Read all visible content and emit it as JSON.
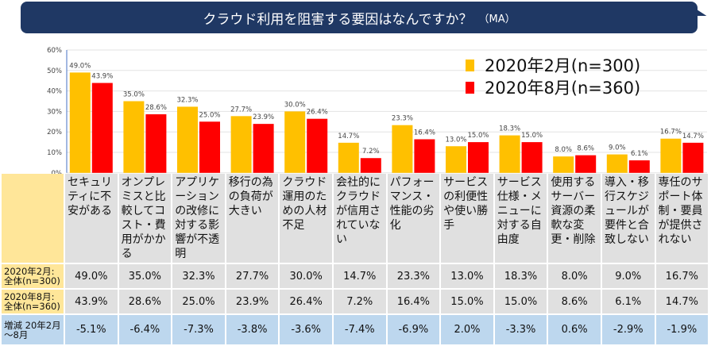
{
  "title": "クラウド利用を阻害する要因はなんですか？",
  "title_suffix": "（MA）",
  "legend": [
    {
      "label": "2020年2月(n=300)",
      "color": "#ffc000"
    },
    {
      "label": "2020年8月(n=360)",
      "color": "#ff0000"
    }
  ],
  "chart_data": {
    "type": "bar",
    "categories": [
      "セキュリティに不安がある",
      "オンプレミスと比較してコスト・費用がかかる",
      "アプリケーションの改修に対する影響が不透明",
      "移行の為の負荷が大きい",
      "クラウド運用のための人材不足",
      "会社的にクラウドが信用されていない",
      "パフォーマンス・性能の劣化",
      "サービスの利便性や使い勝手",
      "サービス仕様・メニューに対する自由度",
      "使用するサーバー資源の柔軟な変更・削除",
      "導入・移行スケジュールが要件と合致しない",
      "専任のサポート体制・要員が提供されない"
    ],
    "series": [
      {
        "name": "2020年2月(n=300)",
        "values": [
          49.0,
          35.0,
          32.3,
          27.7,
          30.0,
          14.7,
          23.3,
          13.0,
          18.3,
          8.0,
          9.0,
          16.7
        ]
      },
      {
        "name": "2020年8月(n=360)",
        "values": [
          43.9,
          28.6,
          25.0,
          23.9,
          26.4,
          7.2,
          16.4,
          15.0,
          15.0,
          8.6,
          6.1,
          14.7
        ]
      }
    ],
    "yticks": [
      "0%",
      "10%",
      "20%",
      "30%",
      "40%",
      "50%",
      "60%"
    ],
    "ylim": [
      0,
      60
    ],
    "grid": true,
    "legend_position": "top-right"
  },
  "table": {
    "row_labels": [
      "2020年2月:全体(n=300)",
      "2020年8月:全体(n=360)",
      "増減 20年2月～8月"
    ],
    "headers": [
      "セキュリティに不安がある",
      "オンプレミスと比較してコスト・費用がかかる",
      "アプリケーションの改修に対する影響が不透明",
      "移行の為の負荷が大きい",
      "クラウド運用のための人材不足",
      "会社的にクラウドが信用されていない",
      "パフォーマンス・性能の劣化",
      "サービスの利便性や使い勝手",
      "サービス仕様・メニューに対する自由度",
      "使用するサーバー資源の柔軟な変更・削除",
      "導入・移行スケジュールが要件と合致しない",
      "専任のサポート体制・要員が提供されない"
    ],
    "rows": [
      [
        "49.0%",
        "35.0%",
        "32.3%",
        "27.7%",
        "30.0%",
        "14.7%",
        "23.3%",
        "13.0%",
        "18.3%",
        "8.0%",
        "9.0%",
        "16.7%"
      ],
      [
        "43.9%",
        "28.6%",
        "25.0%",
        "23.9%",
        "26.4%",
        "7.2%",
        "16.4%",
        "15.0%",
        "15.0%",
        "8.6%",
        "6.1%",
        "14.7%"
      ],
      [
        "-5.1%",
        "-6.4%",
        "-7.3%",
        "-3.8%",
        "-3.6%",
        "-7.4%",
        "-6.9%",
        "2.0%",
        "-3.3%",
        "0.6%",
        "-2.9%",
        "-1.9%"
      ]
    ]
  }
}
